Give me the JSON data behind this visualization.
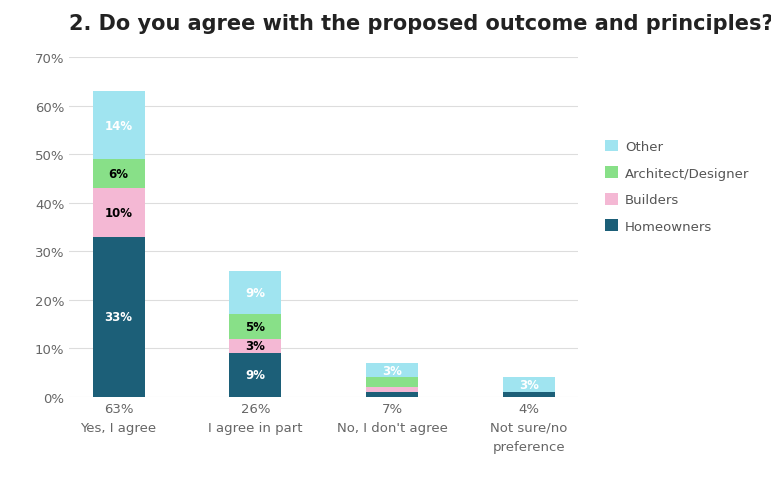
{
  "title": "2. Do you agree with the proposed outcome and principles?",
  "categories": [
    "Yes, I agree",
    "I agree in part",
    "No, I don't agree",
    "Not sure/no\npreference"
  ],
  "x_totals": [
    "63%",
    "26%",
    "7%",
    "4%"
  ],
  "segments": {
    "Homeowners": [
      33,
      9,
      1,
      1
    ],
    "Builders": [
      10,
      3,
      1,
      0
    ],
    "Architect/Designer": [
      6,
      5,
      2,
      0
    ],
    "Other": [
      14,
      9,
      3,
      3
    ]
  },
  "segment_labels": {
    "Homeowners": [
      "33%",
      "9%",
      "",
      ""
    ],
    "Builders": [
      "10%",
      "3%",
      "",
      ""
    ],
    "Architect/Designer": [
      "6%",
      "5%",
      "",
      ""
    ],
    "Other": [
      "14%",
      "9%",
      "3%",
      "3%"
    ]
  },
  "text_colors": {
    "Homeowners": "white",
    "Builders": "black",
    "Architect/Designer": "black",
    "Other": "white"
  },
  "colors": {
    "Homeowners": "#1c5f78",
    "Builders": "#f4b8d4",
    "Architect/Designer": "#88e088",
    "Other": "#a0e4f0"
  },
  "ylim": [
    0,
    70
  ],
  "yticks": [
    0,
    10,
    20,
    30,
    40,
    50,
    60,
    70
  ],
  "ytick_labels": [
    "0%",
    "10%",
    "20%",
    "30%",
    "40%",
    "50%",
    "60%",
    "70%"
  ],
  "background_color": "#ffffff",
  "grid_color": "#dddddd",
  "title_fontsize": 15,
  "label_fontsize": 8.5,
  "tick_fontsize": 9.5,
  "bar_width": 0.38
}
